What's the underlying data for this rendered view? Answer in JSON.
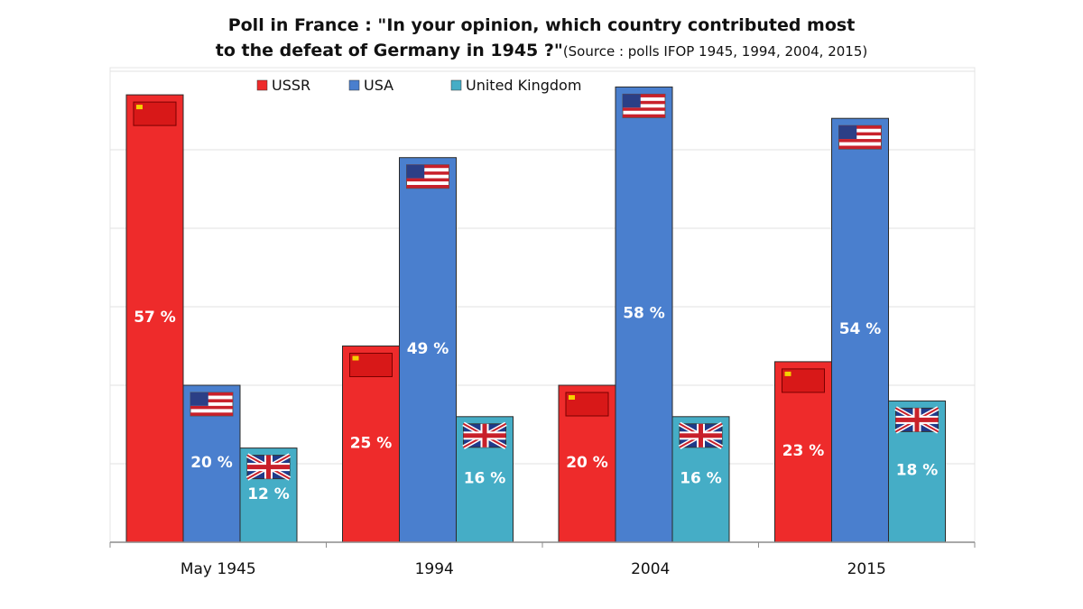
{
  "title": {
    "line1": "Poll in France : \"In your opinion, which country contributed most",
    "line2": "to the defeat of Germany in 1945 ?\"",
    "source": "(Source : polls IFOP 1945, 1994, 2004, 2015)"
  },
  "colors": {
    "USSR": "#ee2b2b",
    "USA": "#4a7fce",
    "United Kingdom": "#45adc6"
  },
  "chart_data": {
    "type": "bar",
    "title": "Poll in France : \"In your opinion, which country contributed most to the defeat of Germany in 1945 ?\"",
    "subtitle": "(Source : polls IFOP 1945, 1994, 2004, 2015)",
    "categories": [
      "May 1945",
      "1994",
      "2004",
      "2015"
    ],
    "series": [
      {
        "name": "USSR",
        "values": [
          57,
          25,
          20,
          23
        ],
        "labels": [
          "57 %",
          "25 %",
          "20 %",
          "23 %"
        ],
        "icon": "ussr-flag-icon"
      },
      {
        "name": "USA",
        "values": [
          20,
          49,
          58,
          54
        ],
        "labels": [
          "20 %",
          "49 %",
          "58 %",
          "54 %"
        ],
        "icon": "usa-flag-icon"
      },
      {
        "name": "United Kingdom",
        "values": [
          12,
          16,
          16,
          18
        ],
        "labels": [
          "12 %",
          "16 %",
          "16 %",
          "18 %"
        ],
        "icon": "uk-flag-icon"
      }
    ],
    "ylim": [
      0,
      60
    ],
    "grid": true,
    "legend": "top"
  }
}
